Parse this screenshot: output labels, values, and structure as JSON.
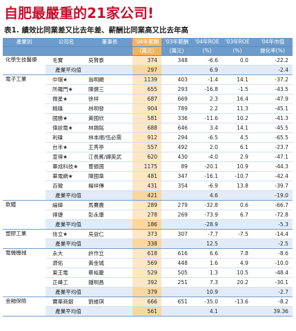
{
  "title": "自肥最嚴重的21家公司!",
  "subtitle": "表1. 績效比同業差又比去年差、薪酬比同業高又比去年高",
  "headers": {
    "row1": [
      "產業別",
      "公司名",
      "董事長",
      "'04年薪酬",
      "'03年薪酬",
      "'04年ROE",
      "'03年ROE",
      "'04年市值"
    ],
    "row2": [
      "",
      "",
      "",
      "(萬元)",
      "(萬元)",
      "(%)",
      "(%)",
      "變化率(%)"
    ]
  },
  "groups": [
    {
      "industry": "化學生技醫療",
      "rows": [
        {
          "company": "毛寶",
          "chair": "吳賢泰",
          "pay04": "374",
          "pay03": "348",
          "roe04": "-6.6",
          "roe03": "0.0",
          "mcap": "-22.2"
        }
      ],
      "avg": {
        "label": "產業平均值",
        "pay04": "297",
        "pay03": "",
        "roe04": "6.9",
        "roe03": "",
        "mcap": "-2.4"
      }
    },
    {
      "industry": "電子工業",
      "rows": [
        {
          "company": "中環★",
          "chair": "翁明顯",
          "pay04": "1139",
          "pay03": "403",
          "roe04": "-1.4",
          "roe03": "14.1",
          "mcap": "-37.2"
        },
        {
          "company": "所羅門★",
          "chair": "陳健三",
          "pay04": "655",
          "pay03": "293",
          "roe04": "-16.8",
          "roe03": "-1.5",
          "mcap": "-43.5"
        },
        {
          "company": "微星★",
          "chair": "徐祥",
          "pay04": "687",
          "pay03": "669",
          "roe04": "2.3",
          "roe03": "16.4",
          "mcap": "-47.9"
        },
        {
          "company": "精碟",
          "chair": "林明發",
          "pay04": "904",
          "pay03": "789",
          "roe04": "2.2",
          "roe03": "11.3",
          "mcap": "-45.1"
        },
        {
          "company": "國勝★",
          "chair": "黃國欣",
          "pay04": "581",
          "pay03": "336",
          "roe04": "-11.6",
          "roe03": "10.2",
          "mcap": "-41.3"
        },
        {
          "company": "偉詮電★",
          "chair": "林錫銘",
          "pay04": "688",
          "pay03": "646",
          "roe04": "3.4",
          "roe03": "14.1",
          "mcap": "-45.5"
        },
        {
          "company": "利碟",
          "chair": "林本順/伍必需",
          "pay04": "912",
          "pay03": "294",
          "roe04": "-6.5",
          "roe03": "4.5",
          "mcap": "-65.5"
        },
        {
          "company": "台半★",
          "chair": "王秀亭",
          "pay04": "557",
          "pay03": "492",
          "roe04": "2.0",
          "roe03": "6.1",
          "mcap": "-23.7"
        },
        {
          "company": "宣得★",
          "chair": "江長賓/譚英武",
          "pay04": "620",
          "pay03": "430",
          "roe04": "-4.0",
          "roe03": "2.9",
          "mcap": "-47.1"
        },
        {
          "company": "軍成科技★",
          "chair": "曹振國",
          "pay04": "1175",
          "pay03": "89",
          "roe04": "-20.1",
          "roe03": "10.9",
          "mcap": "-44.3"
        },
        {
          "company": "華電網★",
          "chair": "陳國韋",
          "pay04": "481",
          "pay03": "347",
          "roe04": "-16.1",
          "roe03": "-10.7",
          "mcap": "-42.4"
        },
        {
          "company": "百徽",
          "chair": "楊祥傳",
          "pay04": "431",
          "pay03": "354",
          "roe04": "-6.9",
          "roe03": "13.8",
          "mcap": "-39.7"
        }
      ],
      "avg": {
        "label": "產業平均值",
        "pay04": "421",
        "pay03": "",
        "roe04": "4.6",
        "roe03": "",
        "mcap": "-19.0"
      }
    },
    {
      "industry": "軟體",
      "rows": [
        {
          "company": "綸緯",
          "chair": "馬賽農",
          "pay04": "289",
          "pay03": "279",
          "roe04": "-32.8",
          "roe03": "0.6",
          "mcap": "-66.7"
        },
        {
          "company": "得捷",
          "chair": "彭永康",
          "pay04": "278",
          "pay03": "269",
          "roe04": "-73.9",
          "roe03": "6.7",
          "mcap": "-72.8"
        }
      ],
      "avg": {
        "label": "產業平均值",
        "pay04": "186",
        "pay03": "",
        "roe04": "-28.9",
        "roe03": "",
        "mcap": "-5.3"
      }
    },
    {
      "industry": "塑膠工業",
      "rows": [
        {
          "company": "信立★",
          "chair": "吳益仁",
          "pay04": "373",
          "pay03": "307",
          "roe04": "-7.7",
          "roe03": "-7.5",
          "mcap": "-14.4"
        }
      ],
      "avg": {
        "label": "產業平均值",
        "pay04": "338",
        "pay03": "",
        "roe04": "12.5",
        "roe03": "",
        "mcap": "-2.5"
      }
    },
    {
      "industry": "電機機械",
      "rows": [
        {
          "company": "永大",
          "chair": "許作立",
          "pay04": "618",
          "pay03": "616",
          "roe04": "6.6",
          "roe03": "7.8",
          "mcap": "-8.6"
        },
        {
          "company": "源佑",
          "chair": "黃金城",
          "pay04": "569",
          "pay03": "448",
          "roe04": "1.6",
          "roe03": "4.9",
          "mcap": "-10.0"
        },
        {
          "company": "東王電",
          "chair": "蔡裕慶",
          "pay04": "529",
          "pay03": "505",
          "roe04": "1.3",
          "roe03": "10.5",
          "mcap": "-48.4"
        },
        {
          "company": "正峰工",
          "chair": "鍾明昌",
          "pay04": "392",
          "pay03": "251",
          "roe04": "7.3",
          "roe03": "20.2",
          "mcap": "-30.1"
        }
      ],
      "avg": {
        "label": "產業平均值",
        "pay04": "379",
        "pay03": "",
        "roe04": "10.9",
        "roe03": "",
        "mcap": "-2.7"
      }
    },
    {
      "industry": "金融保險",
      "rows": [
        {
          "company": "寶華商銀",
          "chair": "劉維琪",
          "pay04": "666",
          "pay03": "651",
          "roe04": "-35.0",
          "roe03": "-13.6",
          "mcap": "-8.2"
        }
      ],
      "avg": {
        "label": "產業平均值",
        "pay04": "561",
        "pay03": "",
        "roe04": "4.1",
        "roe03": "",
        "mcap": "39.36"
      }
    }
  ]
}
